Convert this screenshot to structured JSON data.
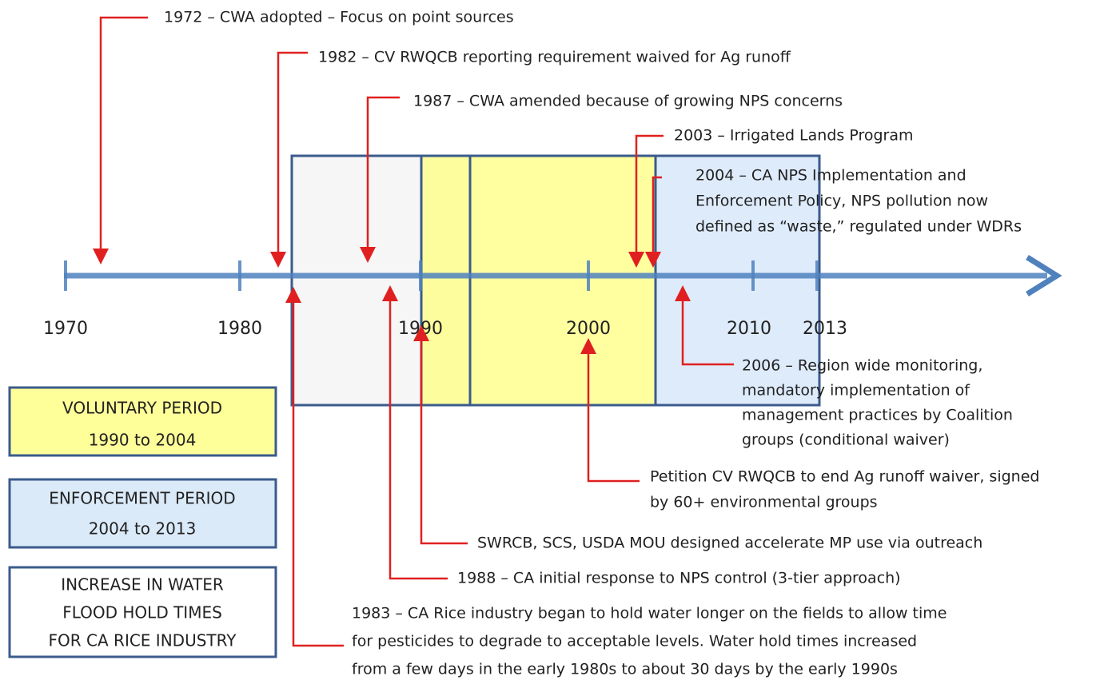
{
  "timeline": {
    "years": [
      "1970",
      "1980",
      "1990",
      "2000",
      "2010",
      "2013"
    ]
  },
  "events": [
    {
      "lines": [
        "1972 – CWA adopted – Focus on point sources"
      ]
    },
    {
      "lines": [
        "1982 – CV RWQCB reporting requirement waived for Ag runoff"
      ]
    },
    {
      "lines": [
        "1987 – CWA amended because of growing NPS concerns"
      ]
    },
    {
      "lines": [
        "2003 – Irrigated Lands Program"
      ]
    },
    {
      "lines": [
        "2004 – CA NPS Implementation and",
        "Enforcement Policy,  NPS pollution now",
        "defined as “waste,” regulated under WDRs"
      ]
    },
    {
      "lines": [
        "2006 – Region wide monitoring,",
        "mandatory implementation of",
        "management practices by Coalition",
        "groups (conditional waiver)"
      ]
    },
    {
      "lines": [
        "Petition CV RWQCB to end Ag runoff waiver, signed",
        "by 60+ environmental groups"
      ]
    },
    {
      "lines": [
        "SWRCB, SCS, USDA MOU designed accelerate MP use via outreach"
      ]
    },
    {
      "lines": [
        "1988 – CA initial response to NPS control (3-tier approach)"
      ]
    },
    {
      "lines": [
        "1983 – CA Rice industry began to hold water longer on the fields to allow time",
        "for pesticides to degrade to acceptable levels.  Water hold times increased",
        "from a few days in the early 1980s to about 30 days by the early 1990s"
      ]
    }
  ],
  "legend": [
    {
      "lines": [
        "VOLUNTARY PERIOD",
        "1990 to 2004"
      ]
    },
    {
      "lines": [
        "ENFORCEMENT PERIOD",
        "2004 to 2013"
      ]
    },
    {
      "lines": [
        "INCREASE IN WATER",
        "FLOOD HOLD TIMES",
        "FOR CA RICE INDUSTRY"
      ]
    }
  ]
}
